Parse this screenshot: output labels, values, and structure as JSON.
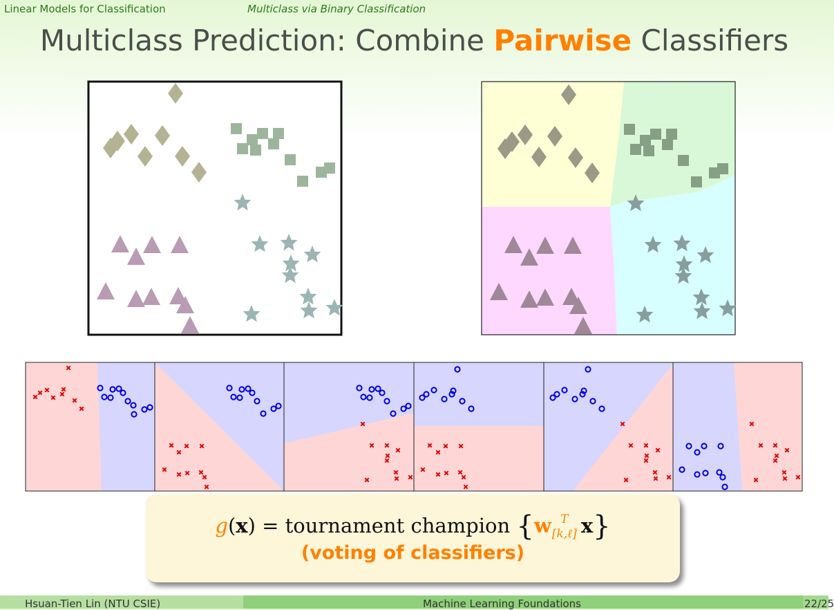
{
  "header": {
    "section": "Linear Models for Classification",
    "subsection": "Multiclass via Binary Classification"
  },
  "title": {
    "before": "Multiclass Prediction: Combine ",
    "highlight": "Pairwise",
    "after": " Classifiers"
  },
  "colors": {
    "accent": "#ff8000",
    "title_text": "#4a4f4a",
    "header_text": "#2f7a1e",
    "diamond_class": "#b3b394",
    "square_class": "#9db59d",
    "triangle_class": "#b99bb3",
    "star_class": "#9bb4b4",
    "region_diamond": "#ffffd6",
    "region_square": "#d8f8d8",
    "region_triangle": "#ffd8ff",
    "region_star": "#d8ffff",
    "pair_red_region": "#ffd6d6",
    "pair_blue_region": "#d6d6ff",
    "pair_x_marker": "#e00000",
    "pair_o_marker": "#0000e0"
  },
  "formula": {
    "g": "g",
    "x": "x",
    "equals": " = tournament champion ",
    "w": "w",
    "superscript": "T",
    "subscript": "[k,ℓ]",
    "note": "(voting of classifiers)"
  },
  "footer": {
    "author": "Hsuan-Tien Lin  (NTU CSIE)",
    "course": "Machine Learning Foundations",
    "page": "22/25"
  }
}
